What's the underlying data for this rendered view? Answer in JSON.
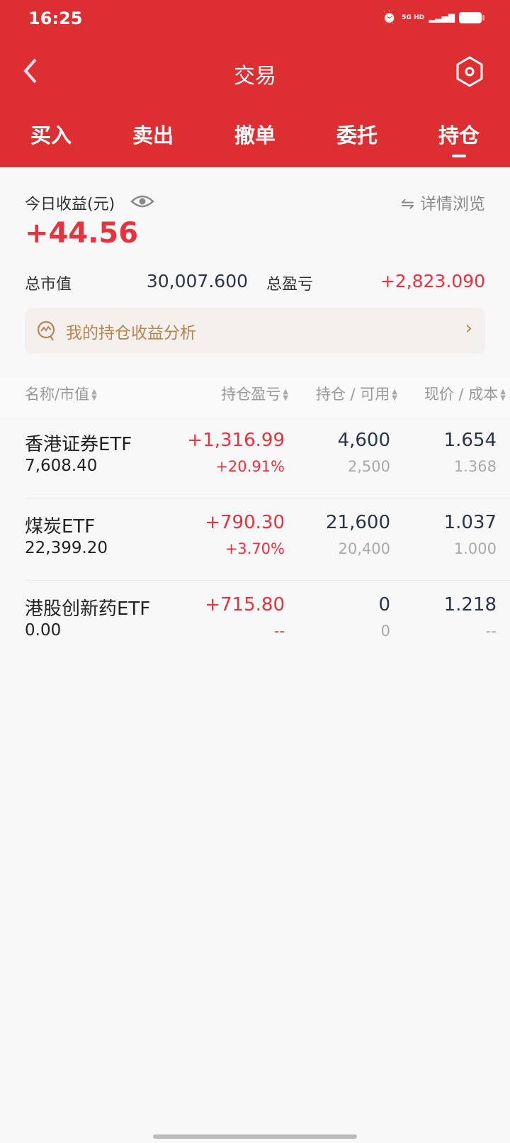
{
  "status_bar": {
    "time": "16:25",
    "network": "5G HD"
  },
  "header": {
    "title": "交易"
  },
  "tabs": [
    {
      "label": "买入"
    },
    {
      "label": "卖出"
    },
    {
      "label": "撤单"
    },
    {
      "label": "委托"
    },
    {
      "label": "持仓",
      "active": true
    }
  ],
  "summary": {
    "today_label": "今日收益(元)",
    "today_value": "+44.56",
    "detail_label": "详情浏览",
    "market_value_label": "总市值",
    "market_value": "30,007.600",
    "total_pnl_label": "总盈亏",
    "total_pnl": "+2,823.090"
  },
  "banner": {
    "label": "我的持仓收益分析"
  },
  "table": {
    "headers": [
      "名称/市值",
      "持仓盈亏",
      "持仓 / 可用",
      "现价 / 成本"
    ],
    "rows": [
      {
        "name": "香港证券ETF",
        "market_value": "7,608.40",
        "pnl": "+1,316.99",
        "pnl_pct": "+20.91%",
        "position": "4,600",
        "available": "2,500",
        "price": "1.654",
        "cost": "1.368"
      },
      {
        "name": "煤炭ETF",
        "market_value": "22,399.20",
        "pnl": "+790.30",
        "pnl_pct": "+3.70%",
        "position": "21,600",
        "available": "20,400",
        "price": "1.037",
        "cost": "1.000"
      },
      {
        "name": "港股创新药ETF",
        "market_value": "0.00",
        "pnl": "+715.80",
        "pnl_pct": "--",
        "position": "0",
        "available": "0",
        "price": "1.218",
        "cost": "--"
      }
    ]
  },
  "colors": {
    "brand_red": "#dd2f32",
    "gain": "#e8323f",
    "banner_text": "#b8844f"
  }
}
